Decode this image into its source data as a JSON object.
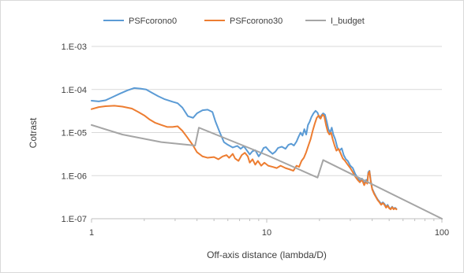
{
  "chart_data": {
    "type": "line",
    "x_scale": "log",
    "y_scale": "log",
    "xlim": [
      1,
      100
    ],
    "ylim": [
      1e-07,
      0.001
    ],
    "x_ticks": [
      1,
      10,
      100
    ],
    "x_tick_labels": [
      "1",
      "10",
      "100"
    ],
    "y_ticks": [
      1e-07,
      1e-06,
      1e-05,
      0.0001,
      0.001
    ],
    "y_tick_labels": [
      "1.E-07",
      "1.E-06",
      "1.E-05",
      "1.E-04",
      "1.E-03"
    ],
    "xlabel": "Off-axis distance (lambda/D)",
    "ylabel": "Cotrast",
    "grid": "horizontal",
    "legend_position": "top",
    "series": [
      {
        "name": "PSFcorono0",
        "color": "#5b9bd5",
        "points": [
          [
            1,
            5.5e-05
          ],
          [
            1.1,
            5.3e-05
          ],
          [
            1.2,
            5.6e-05
          ],
          [
            1.3,
            6.5e-05
          ],
          [
            1.45,
            8e-05
          ],
          [
            1.6,
            9.5e-05
          ],
          [
            1.75,
            0.000108
          ],
          [
            1.9,
            0.000105
          ],
          [
            2.05,
            0.0001
          ],
          [
            2.2,
            8.5e-05
          ],
          [
            2.4,
            7e-05
          ],
          [
            2.6,
            6e-05
          ],
          [
            2.9,
            5.2e-05
          ],
          [
            3.1,
            4.8e-05
          ],
          [
            3.3,
            3.8e-05
          ],
          [
            3.55,
            2.4e-05
          ],
          [
            3.8,
            2.2e-05
          ],
          [
            4.0,
            2.8e-05
          ],
          [
            4.3,
            3.3e-05
          ],
          [
            4.6,
            3.4e-05
          ],
          [
            4.9,
            3e-05
          ],
          [
            5.1,
            1.8e-05
          ],
          [
            5.4,
            1e-05
          ],
          [
            5.7,
            6e-06
          ],
          [
            6.0,
            5.2e-06
          ],
          [
            6.4,
            4.5e-06
          ],
          [
            6.8,
            4.9e-06
          ],
          [
            7.1,
            4.2e-06
          ],
          [
            7.4,
            4.8e-06
          ],
          [
            7.8,
            3.6e-06
          ],
          [
            8.0,
            3.1e-06
          ],
          [
            8.3,
            3.7e-06
          ],
          [
            8.6,
            3.9e-06
          ],
          [
            8.8,
            3.3e-06
          ],
          [
            9.0,
            2.8e-06
          ],
          [
            9.3,
            3.4e-06
          ],
          [
            9.6,
            4.4e-06
          ],
          [
            9.9,
            4.6e-06
          ],
          [
            10.3,
            3.8e-06
          ],
          [
            10.8,
            3.2e-06
          ],
          [
            11.2,
            3.6e-06
          ],
          [
            11.6,
            4.4e-06
          ],
          [
            12.2,
            4.7e-06
          ],
          [
            12.8,
            4.2e-06
          ],
          [
            13.3,
            5.2e-06
          ],
          [
            13.8,
            5.5e-06
          ],
          [
            14.3,
            5e-06
          ],
          [
            14.8,
            6.2e-06
          ],
          [
            15.2,
            8e-06
          ],
          [
            15.6,
            1e-05
          ],
          [
            16.0,
            8.5e-06
          ],
          [
            16.4,
            1.2e-05
          ],
          [
            16.8,
            9e-06
          ],
          [
            17.2,
            1.5e-05
          ],
          [
            17.6,
            1.8e-05
          ],
          [
            18.0,
            2.3e-05
          ],
          [
            18.5,
            2.8e-05
          ],
          [
            19.0,
            3.2e-05
          ],
          [
            19.5,
            2.9e-05
          ],
          [
            20.0,
            2.2e-05
          ],
          [
            20.5,
            2.5e-05
          ],
          [
            21.0,
            2.8e-05
          ],
          [
            21.5,
            2.6e-05
          ],
          [
            22.0,
            1.8e-05
          ],
          [
            22.5,
            1.2e-05
          ],
          [
            23.0,
            1e-05
          ],
          [
            23.5,
            1.3e-05
          ],
          [
            24.0,
            9e-06
          ],
          [
            24.6,
            7e-06
          ],
          [
            25.3,
            4.5e-06
          ],
          [
            26.0,
            3.8e-06
          ],
          [
            26.8,
            4.3e-06
          ],
          [
            27.5,
            3e-06
          ],
          [
            28.3,
            2.4e-06
          ],
          [
            29.0,
            2.2e-06
          ],
          [
            30.0,
            1.7e-06
          ],
          [
            31.0,
            1.5e-06
          ],
          [
            32.0,
            1.1e-06
          ],
          [
            33.0,
            9e-07
          ],
          [
            34.0,
            7.5e-07
          ],
          [
            35.0,
            8.5e-07
          ],
          [
            36.0,
            6.5e-07
          ],
          [
            37.0,
            8e-07
          ],
          [
            37.5,
            7e-07
          ],
          [
            38.0,
            1.2e-06
          ],
          [
            38.6,
            1.3e-06
          ],
          [
            39.2,
            8e-07
          ],
          [
            40.0,
            5e-07
          ],
          [
            41.0,
            4e-07
          ],
          [
            42.0,
            3.3e-07
          ],
          [
            43.0,
            2.8e-07
          ],
          [
            44.0,
            2.5e-07
          ],
          [
            45.0,
            2.2e-07
          ],
          [
            46.0,
            2.4e-07
          ],
          [
            47.0,
            2.2e-07
          ],
          [
            48.0,
            1.9e-07
          ],
          [
            49.0,
            2.1e-07
          ],
          [
            50.0,
            1.8e-07
          ],
          [
            51.0,
            1.7e-07
          ],
          [
            52.0,
            1.9e-07
          ],
          [
            53.0,
            1.7e-07
          ],
          [
            54.0,
            1.8e-07
          ],
          [
            55.0,
            1.7e-07
          ]
        ]
      },
      {
        "name": "PSFcorono30",
        "color": "#ed7d31",
        "points": [
          [
            1,
            3.5e-05
          ],
          [
            1.1,
            3.9e-05
          ],
          [
            1.2,
            4.1e-05
          ],
          [
            1.35,
            4.2e-05
          ],
          [
            1.5,
            4e-05
          ],
          [
            1.7,
            3.6e-05
          ],
          [
            1.85,
            3e-05
          ],
          [
            2.0,
            2.5e-05
          ],
          [
            2.15,
            2e-05
          ],
          [
            2.3,
            1.7e-05
          ],
          [
            2.5,
            1.5e-05
          ],
          [
            2.7,
            1.35e-05
          ],
          [
            2.9,
            1.35e-05
          ],
          [
            3.1,
            1.4e-05
          ],
          [
            3.3,
            1.1e-05
          ],
          [
            3.5,
            8e-06
          ],
          [
            3.8,
            5e-06
          ],
          [
            4.0,
            3.5e-06
          ],
          [
            4.3,
            2.8e-06
          ],
          [
            4.6,
            2.6e-06
          ],
          [
            5.0,
            2.7e-06
          ],
          [
            5.3,
            2.4e-06
          ],
          [
            5.6,
            2.8e-06
          ],
          [
            5.9,
            3e-06
          ],
          [
            6.1,
            2.6e-06
          ],
          [
            6.4,
            3.2e-06
          ],
          [
            6.6,
            2.5e-06
          ],
          [
            6.9,
            2.2e-06
          ],
          [
            7.2,
            3e-06
          ],
          [
            7.5,
            3.4e-06
          ],
          [
            7.8,
            2.8e-06
          ],
          [
            8.0,
            2e-06
          ],
          [
            8.3,
            2.4e-06
          ],
          [
            8.6,
            1.8e-06
          ],
          [
            8.9,
            2.2e-06
          ],
          [
            9.3,
            1.7e-06
          ],
          [
            9.7,
            2e-06
          ],
          [
            10.2,
            1.7e-06
          ],
          [
            10.8,
            1.6e-06
          ],
          [
            11.4,
            1.5e-06
          ],
          [
            12.0,
            1.7e-06
          ],
          [
            12.8,
            1.5e-06
          ],
          [
            13.5,
            1.4e-06
          ],
          [
            14.2,
            1.3e-06
          ],
          [
            14.8,
            1.7e-06
          ],
          [
            15.3,
            1.6e-06
          ],
          [
            15.8,
            2.2e-06
          ],
          [
            16.3,
            2.6e-06
          ],
          [
            16.8,
            3.5e-06
          ],
          [
            17.3,
            5e-06
          ],
          [
            17.8,
            7e-06
          ],
          [
            18.3,
            1.1e-05
          ],
          [
            18.8,
            1.6e-05
          ],
          [
            19.3,
            2.2e-05
          ],
          [
            19.8,
            2.5e-05
          ],
          [
            20.3,
            2.1e-05
          ],
          [
            20.8,
            2.6e-05
          ],
          [
            21.3,
            2.4e-05
          ],
          [
            21.8,
            1.5e-05
          ],
          [
            22.3,
            1.05e-05
          ],
          [
            22.8,
            9e-06
          ],
          [
            23.3,
            1e-05
          ],
          [
            23.8,
            7e-06
          ],
          [
            24.4,
            5e-06
          ],
          [
            25.0,
            3.8e-06
          ],
          [
            25.7,
            4.2e-06
          ],
          [
            26.5,
            3.2e-06
          ],
          [
            27.2,
            2.5e-06
          ],
          [
            28.0,
            2.2e-06
          ],
          [
            29.0,
            1.8e-06
          ],
          [
            30.0,
            1.5e-06
          ],
          [
            31.0,
            1.2e-06
          ],
          [
            32.0,
            9.5e-07
          ],
          [
            33.0,
            8e-07
          ],
          [
            34.0,
            7e-07
          ],
          [
            35.0,
            8e-07
          ],
          [
            36.0,
            6e-07
          ],
          [
            37.0,
            7.5e-07
          ],
          [
            37.5,
            6.5e-07
          ],
          [
            38.0,
            1.1e-06
          ],
          [
            38.6,
            1.25e-06
          ],
          [
            39.2,
            7.5e-07
          ],
          [
            40.0,
            4.8e-07
          ],
          [
            41.0,
            3.8e-07
          ],
          [
            42.0,
            3.2e-07
          ],
          [
            43.0,
            2.7e-07
          ],
          [
            44.0,
            2.4e-07
          ],
          [
            45.0,
            2.1e-07
          ],
          [
            46.0,
            2.3e-07
          ],
          [
            47.0,
            2.1e-07
          ],
          [
            48.0,
            1.8e-07
          ],
          [
            49.0,
            2e-07
          ],
          [
            50.0,
            1.75e-07
          ],
          [
            51.0,
            1.65e-07
          ],
          [
            52.0,
            1.85e-07
          ],
          [
            53.0,
            1.65e-07
          ],
          [
            54.0,
            1.75e-07
          ],
          [
            55.0,
            1.65e-07
          ]
        ]
      },
      {
        "name": "I_budget",
        "color": "#a5a5a5",
        "points": [
          [
            1,
            1.5e-05
          ],
          [
            1.5,
            9e-06
          ],
          [
            2.5,
            6e-06
          ],
          [
            3.9,
            5e-06
          ],
          [
            4.1,
            1.3e-05
          ],
          [
            10,
            3e-06
          ],
          [
            19.5,
            9e-07
          ],
          [
            21,
            2.3e-06
          ],
          [
            100,
            1e-07
          ]
        ]
      }
    ]
  }
}
